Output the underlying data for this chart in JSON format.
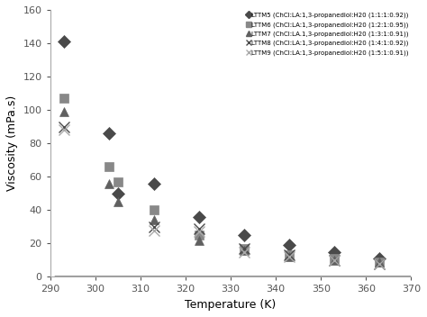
{
  "title": "",
  "xlabel": "Temperature (K)",
  "ylabel": "Viscosity (mPa.s)",
  "xlim": [
    290,
    370
  ],
  "ylim": [
    0,
    160
  ],
  "xticks": [
    290,
    300,
    310,
    320,
    330,
    340,
    350,
    360,
    370
  ],
  "yticks": [
    0,
    20,
    40,
    60,
    80,
    100,
    120,
    140,
    160
  ],
  "series": [
    {
      "name": "LTTM5 (ChCl:LA:1,3-propanediol:H20 (1:1:1:0.92))",
      "marker": "D",
      "color": "#4a4a4a",
      "markersize": 4.5,
      "scatter_x": [
        293,
        303,
        305,
        313,
        323,
        333,
        343,
        353,
        363
      ],
      "scatter_y": [
        141,
        86,
        50,
        56,
        36,
        25,
        19,
        15,
        11
      ]
    },
    {
      "name": "LTTM6 (ChCl:LA:1,3-propanediol:H20 (1:2:1:0.95))",
      "marker": "s",
      "color": "#888888",
      "markersize": 4.5,
      "scatter_x": [
        293,
        303,
        305,
        313,
        323,
        333,
        343,
        353,
        363
      ],
      "scatter_y": [
        107,
        66,
        57,
        40,
        25,
        17,
        13,
        11,
        9
      ]
    },
    {
      "name": "LTTM7 (ChCl:LA.1,3-propanediol:H20 (1:3:1:0.91))",
      "marker": "^",
      "color": "#606060",
      "markersize": 4.5,
      "scatter_x": [
        293,
        303,
        305,
        313,
        323,
        333,
        343,
        353,
        363
      ],
      "scatter_y": [
        99,
        56,
        45,
        34,
        22,
        16,
        12,
        10,
        9
      ]
    },
    {
      "name": "LTTM8 (ChCl:LA:1,3-propanediol:H20 (1:4:1:0.92))",
      "marker": "x",
      "color": "#4a4a4a",
      "markersize": 5,
      "scatter_x": [
        293,
        313,
        323,
        333,
        343,
        353,
        363
      ],
      "scatter_y": [
        90,
        30,
        29,
        17,
        13,
        10,
        8
      ]
    },
    {
      "name": "LTTM9 (ChCl:LA:1,3-propanediol:H20 (1:5:1:0.91))",
      "marker": "x",
      "color": "#aaaaaa",
      "markersize": 5,
      "scatter_x": [
        293,
        313,
        323,
        333,
        343,
        353,
        363
      ],
      "scatter_y": [
        88,
        28,
        27,
        15,
        12,
        10,
        8
      ]
    }
  ],
  "background_color": "#ffffff",
  "legend_labels": [
    "◆LTTM5 (ChCl:LA:1,3-propanediol:H20 (1:1:1:0.92))",
    "▪LTTM6 (ChCl:LA:1,3-propanediol:H20 (1:2:1:0.95))",
    "▲LTTM7 (ChCl:LA:1,3-propanediol:H20 (1:3:1:0.91))",
    "×LTTM8 (ChCl:LA:1,3-propanediol:H20 (1:4:1:0.92))",
    "∗LTTM9 (ChCl:LA:1,3-propanediol:H20 (1:5:1:0.91))"
  ]
}
